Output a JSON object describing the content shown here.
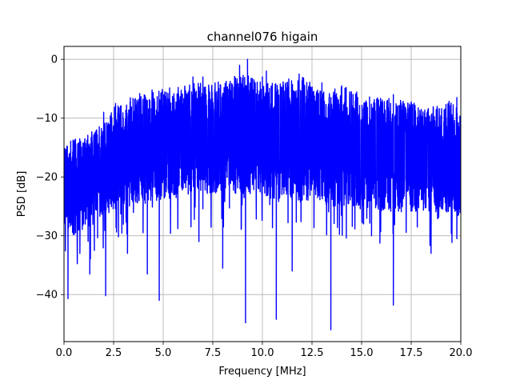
{
  "chart_data": {
    "type": "line",
    "title": "channel076 higain",
    "xlabel": "Frequency [MHz]",
    "ylabel": "PSD [dB]",
    "xlim": [
      0,
      20
    ],
    "ylim": [
      -48,
      2.2
    ],
    "xticks": [
      0,
      2.5,
      5,
      7.5,
      10,
      12.5,
      15,
      17.5,
      20
    ],
    "xtick_labels": [
      "0.0",
      "2.5",
      "5.0",
      "7.5",
      "10.0",
      "12.5",
      "15.0",
      "17.5",
      "20.0"
    ],
    "yticks": [
      0,
      -10,
      -20,
      -30,
      -40
    ],
    "ytick_labels": [
      "0",
      "−10",
      "−20",
      "−30",
      "−40"
    ],
    "grid": true,
    "series": [
      {
        "color": "#0000ff",
        "x_start": 0,
        "x_end": 20,
        "envelope_upper": [
          [
            0,
            -15
          ],
          [
            0.5,
            -13
          ],
          [
            1,
            -13.5
          ],
          [
            1.5,
            -12
          ],
          [
            2,
            -11
          ],
          [
            2.5,
            -8
          ],
          [
            3,
            -7
          ],
          [
            3.5,
            -6
          ],
          [
            4,
            -5.5
          ],
          [
            4.5,
            -5
          ],
          [
            5,
            -5
          ],
          [
            5.5,
            -4.5
          ],
          [
            6,
            -4
          ],
          [
            6.5,
            -4
          ],
          [
            7,
            -3.5
          ],
          [
            7.5,
            -3.5
          ],
          [
            8,
            -3.5
          ],
          [
            8.5,
            -3
          ],
          [
            9,
            -2.5
          ],
          [
            9.5,
            -3
          ],
          [
            10,
            -4
          ],
          [
            10.5,
            -3.5
          ],
          [
            11,
            -3
          ],
          [
            11.5,
            -3.5
          ],
          [
            12,
            -3
          ],
          [
            12.5,
            -4
          ],
          [
            13,
            -4
          ],
          [
            13.5,
            -4.5
          ],
          [
            14,
            -4.5
          ],
          [
            14.5,
            -5
          ],
          [
            15,
            -6
          ],
          [
            15.5,
            -6
          ],
          [
            16,
            -6.5
          ],
          [
            16.5,
            -6.5
          ],
          [
            17,
            -7
          ],
          [
            17.5,
            -7
          ],
          [
            18,
            -8
          ],
          [
            18.5,
            -8
          ],
          [
            19,
            -7.5
          ],
          [
            19.5,
            -7
          ],
          [
            20,
            -9
          ]
        ],
        "envelope_lower": [
          [
            0,
            -28
          ],
          [
            0.5,
            -30
          ],
          [
            1,
            -29
          ],
          [
            1.5,
            -28
          ],
          [
            2,
            -27
          ],
          [
            2.5,
            -26
          ],
          [
            3,
            -25
          ],
          [
            3.5,
            -25
          ],
          [
            4,
            -24
          ],
          [
            4.5,
            -24
          ],
          [
            5,
            -24
          ],
          [
            5.5,
            -24
          ],
          [
            6,
            -23
          ],
          [
            6.5,
            -23
          ],
          [
            7,
            -23
          ],
          [
            7.5,
            -23
          ],
          [
            8,
            -23
          ],
          [
            8.5,
            -23
          ],
          [
            9,
            -23
          ],
          [
            9.5,
            -23
          ],
          [
            10,
            -23
          ],
          [
            10.5,
            -24
          ],
          [
            11,
            -24
          ],
          [
            11.5,
            -24
          ],
          [
            12,
            -24
          ],
          [
            12.5,
            -24
          ],
          [
            13,
            -24
          ],
          [
            13.5,
            -25
          ],
          [
            14,
            -25
          ],
          [
            14.5,
            -25
          ],
          [
            15,
            -25
          ],
          [
            15.5,
            -25
          ],
          [
            16,
            -26
          ],
          [
            16.5,
            -26
          ],
          [
            17,
            -26
          ],
          [
            17.5,
            -26
          ],
          [
            18,
            -26
          ],
          [
            18.5,
            -26
          ],
          [
            19,
            -26
          ],
          [
            19.5,
            -26
          ],
          [
            20,
            -27
          ]
        ],
        "peaks": [
          [
            9.25,
            0
          ],
          [
            8.85,
            -1
          ],
          [
            10.2,
            -2
          ],
          [
            11.85,
            -2.5
          ],
          [
            7.0,
            -3
          ],
          [
            10.0,
            -3
          ],
          [
            6.5,
            -3
          ],
          [
            13.0,
            -4
          ],
          [
            14.0,
            -4.5
          ],
          [
            16.6,
            -6
          ],
          [
            19.8,
            -6.5
          ],
          [
            2.6,
            -7.5
          ],
          [
            2.0,
            -9
          ]
        ],
        "dips": [
          [
            0.2,
            -40.7
          ],
          [
            2.1,
            -40.2
          ],
          [
            4.8,
            -41
          ],
          [
            9.15,
            -44.8
          ],
          [
            10.7,
            -44.2
          ],
          [
            13.45,
            -46
          ],
          [
            16.6,
            -41.8
          ],
          [
            4.2,
            -36.5
          ],
          [
            1.3,
            -36.5
          ],
          [
            8.0,
            -35.5
          ],
          [
            11.5,
            -36
          ],
          [
            18.5,
            -33
          ],
          [
            19.8,
            -30.5
          ],
          [
            15.5,
            -30
          ],
          [
            3.2,
            -33
          ],
          [
            6.8,
            -31
          ],
          [
            0.8,
            -33
          ]
        ]
      }
    ]
  }
}
